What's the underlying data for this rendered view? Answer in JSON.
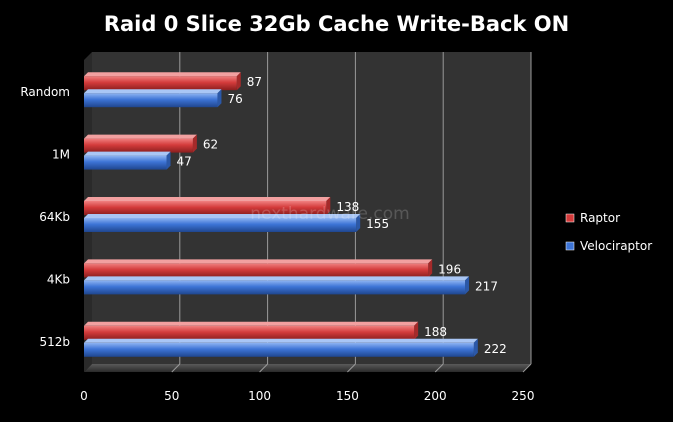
{
  "chart_data": {
    "type": "bar",
    "orientation": "horizontal",
    "title": "Raid 0 Slice 32Gb Cache Write-Back ON",
    "categories": [
      "Random",
      "1M",
      "64Kb",
      "4Kb",
      "512b"
    ],
    "series": [
      {
        "name": "Raptor",
        "values": [
          87,
          62,
          138,
          196,
          188
        ],
        "color": "#d43b3b"
      },
      {
        "name": "Velociraptor",
        "values": [
          76,
          47,
          155,
          217,
          222
        ],
        "color": "#3d74d6"
      }
    ],
    "xlim": [
      0,
      250
    ],
    "xticks": [
      0,
      50,
      100,
      150,
      200,
      250
    ],
    "grid": true,
    "legend": "right",
    "background": "#000000",
    "plot_background": "#333333"
  },
  "watermark": "nexthardware.com"
}
